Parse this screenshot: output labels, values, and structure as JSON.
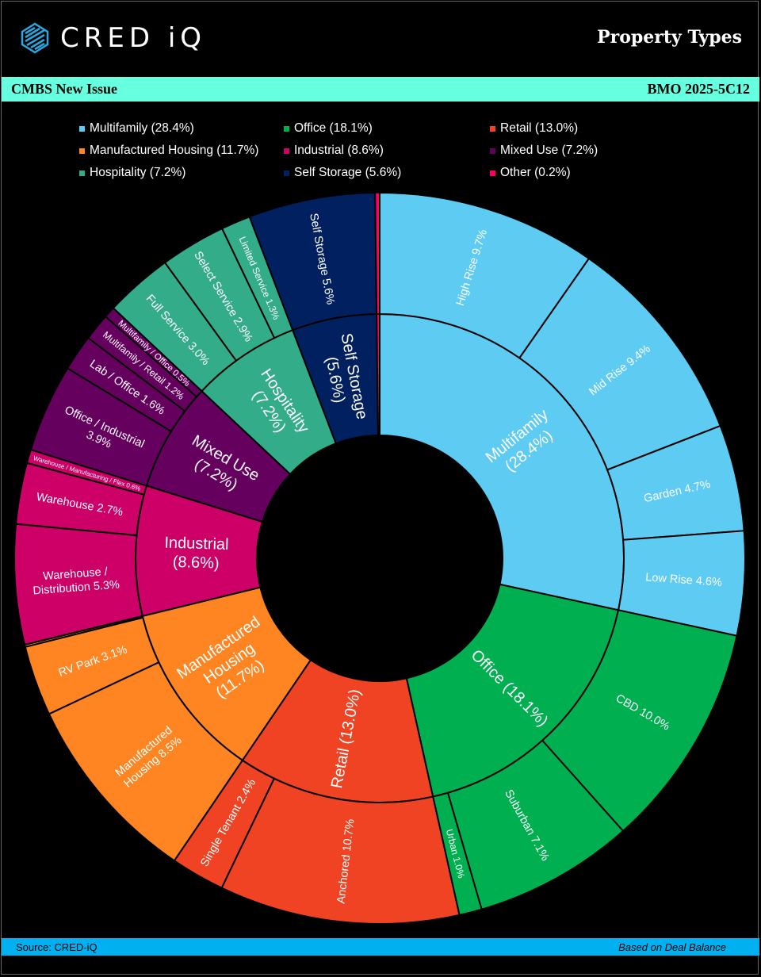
{
  "header": {
    "logo_text": "CRED iQ",
    "title": "Property Types"
  },
  "band": {
    "left": "CMBS New Issue",
    "right": "BMO 2025-5C12"
  },
  "footer": {
    "source": "Source:  CRED-iQ",
    "note": "Based on Deal Balance"
  },
  "chart_data": {
    "type": "sunburst",
    "title": "Property Types",
    "legend_position": "top",
    "legend": [
      "Multifamily (28.4%)",
      "Office (18.1%)",
      "Retail (13.0%)",
      "Manufactured Housing (11.7%)",
      "Industrial (8.6%)",
      "Mixed Use (7.2%)",
      "Hospitality (7.2%)",
      "Self Storage (5.6%)",
      "Other (0.2%)"
    ],
    "categories": [
      {
        "name": "Multifamily",
        "label": "Multifamily\n(28.4%)",
        "value": 28.4,
        "color": "#5ecbf3",
        "children": [
          {
            "label": "High Rise 9.7%",
            "value": 9.7
          },
          {
            "label": "Mid Rise 9.4%",
            "value": 9.4
          },
          {
            "label": "Garden 4.7%",
            "value": 4.7
          },
          {
            "label": "Low Rise 4.6%",
            "value": 4.6
          }
        ]
      },
      {
        "name": "Office",
        "label": "Office (18.1%)",
        "value": 18.1,
        "color": "#00b050",
        "children": [
          {
            "label": "CBD 10.0%",
            "value": 10.0
          },
          {
            "label": "Suburban 7.1%",
            "value": 7.1
          },
          {
            "label": "Urban 1.0%",
            "value": 1.0
          }
        ]
      },
      {
        "name": "Retail",
        "label": "Retail (13.0%)",
        "value": 13.0,
        "color": "#f04323",
        "children": [
          {
            "label": "Anchored 10.7%",
            "value": 10.7
          },
          {
            "label": "Single Tenant 2.4%",
            "value": 2.4
          }
        ]
      },
      {
        "name": "Manufactured Housing",
        "label": "Manufactured\nHousing\n(11.7%)",
        "value": 11.7,
        "color": "#ff8523",
        "children": [
          {
            "label": "Manufactured\nHousing 8.5%",
            "value": 8.5
          },
          {
            "label": "RV Park 3.1%",
            "value": 3.1
          },
          {
            "label": "",
            "value": 0.1
          }
        ]
      },
      {
        "name": "Industrial",
        "label": "Industrial\n(8.6%)",
        "value": 8.6,
        "color": "#cc0066",
        "children": [
          {
            "label": "Warehouse /\nDistribution 5.3%",
            "value": 5.3
          },
          {
            "label": "Warehouse 2.7%",
            "value": 2.7
          },
          {
            "label": "Warehouse / Manufacturing / Flex 0.6%",
            "value": 0.6
          }
        ]
      },
      {
        "name": "Mixed Use",
        "label": "Mixed Use\n(7.2%)",
        "value": 7.2,
        "color": "#66005e",
        "children": [
          {
            "label": "Office / Industrial\n3.9%",
            "value": 3.9
          },
          {
            "label": "Lab / Office 1.6%",
            "value": 1.6
          },
          {
            "label": "Multifamily / Retail 1.2%",
            "value": 1.2
          },
          {
            "label": "Multifamily / Office 0.5%",
            "value": 0.5
          }
        ]
      },
      {
        "name": "Hospitality",
        "label": "Hospitality\n(7.2%)",
        "value": 7.2,
        "color": "#33ac8a",
        "children": [
          {
            "label": "Full Service 3.0%",
            "value": 3.0
          },
          {
            "label": "Select Service 2.9%",
            "value": 2.9
          },
          {
            "label": "Limited Service 1.3%",
            "value": 1.3
          }
        ]
      },
      {
        "name": "Self Storage",
        "label": "Self Storage\n(5.6%)",
        "value": 5.6,
        "color": "#002060",
        "children": [
          {
            "label": "Self Storage 5.6%",
            "value": 5.6
          }
        ]
      },
      {
        "name": "Other",
        "label": "",
        "value": 0.2,
        "color": "#ff0066",
        "children": [
          {
            "label": "",
            "value": 0.2
          }
        ]
      }
    ]
  }
}
